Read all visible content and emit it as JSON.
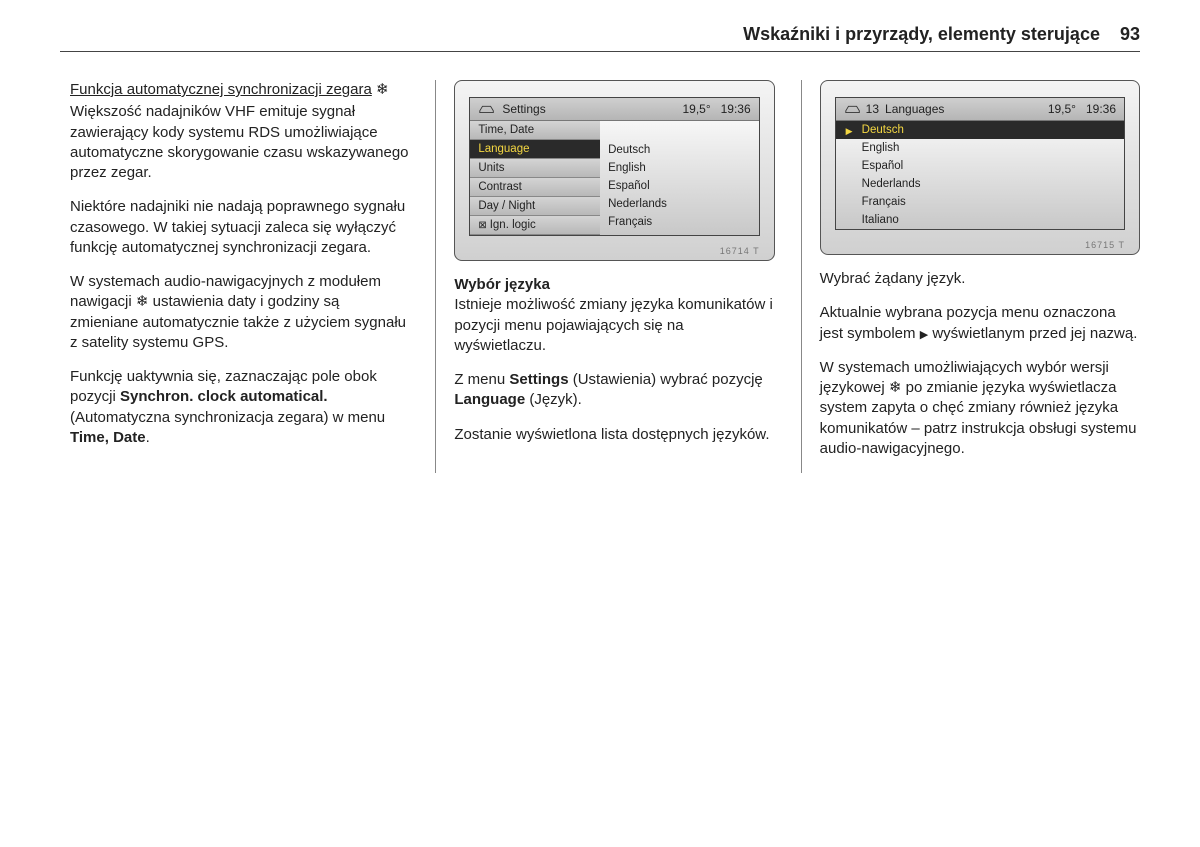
{
  "header": {
    "title": "Wskaźniki i przyrządy, elementy sterujące",
    "page_number": "93"
  },
  "column1": {
    "heading": "Funkcja automatycznej synchronizacji zegara",
    "heading_symbol": "❄",
    "p1": "Większość nadajników VHF emituje sygnał zawierający kody systemu RDS umożliwiające automatyczne skorygowanie czasu wskazywanego przez zegar.",
    "p2": "Niektóre nadajniki nie nadają poprawnego sygnału czasowego. W takiej sytuacji zaleca się wyłączyć funkcję automatycznej synchronizacji zegara.",
    "p3_a": "W systemach audio-nawigacyjnych z modułem nawigacji ",
    "p3_sym": "❄",
    "p3_b": " ustawienia daty i godziny są zmieniane automatycznie także z użyciem sygnału z satelity systemu GPS.",
    "p4_a": "Funkcję uaktywnia się, zaznaczając pole obok pozycji ",
    "p4_b": "Synchron. clock automatical.",
    "p4_c": " (Automatyczna synchronizacja zegara) w menu ",
    "p4_d": "Time, Date",
    "p4_e": "."
  },
  "device1": {
    "header_title": "Settings",
    "temp": "19,5°",
    "time": "19:36",
    "menu": [
      {
        "label": "Time, Date",
        "state": "normal"
      },
      {
        "label": "Language",
        "state": "selected"
      },
      {
        "label": "Units",
        "state": "normal"
      },
      {
        "label": "Contrast",
        "state": "normal"
      },
      {
        "label": "Day / Night",
        "state": "normal"
      },
      {
        "label": "Ign. logic",
        "state": "checkbox"
      }
    ],
    "langs": [
      "Deutsch",
      "English",
      "Español",
      "Nederlands",
      "Français"
    ],
    "image_id": "16714 T"
  },
  "column2": {
    "h": "Wybór języka",
    "p1": "Istnieje możliwość zmiany języka komunikatów i pozycji menu pojawiających się na wyświetlaczu.",
    "p2_a": "Z menu ",
    "p2_b": "Settings",
    "p2_c": " (Ustawienia) wybrać pozycję ",
    "p2_d": "Language",
    "p2_e": " (Język).",
    "p3": "Zostanie wyświetlona lista dostępnych języków."
  },
  "device2": {
    "header_num": "13",
    "header_title": "Languages",
    "temp": "19,5°",
    "time": "19:36",
    "langs": [
      {
        "label": "Deutsch",
        "selected": true
      },
      {
        "label": "English",
        "selected": false
      },
      {
        "label": "Español",
        "selected": false
      },
      {
        "label": "Nederlands",
        "selected": false
      },
      {
        "label": "Français",
        "selected": false
      },
      {
        "label": "Italiano",
        "selected": false
      }
    ],
    "image_id": "16715 T"
  },
  "column3": {
    "p1": "Wybrać żądany język.",
    "p2_a": "Aktualnie wybrana pozycja menu oznaczona jest symbolem ",
    "p2_sym": "▶",
    "p2_b": " wyświetlanym przed jej nazwą.",
    "p3_a": "W systemach umożliwiających wybór wersji językowej ",
    "p3_sym": "❄",
    "p3_b": " po zmianie języka wyświetlacza system zapyta o chęć zmiany również języka komunikatów – patrz instrukcja obsługi systemu audio-nawigacyjnego."
  }
}
